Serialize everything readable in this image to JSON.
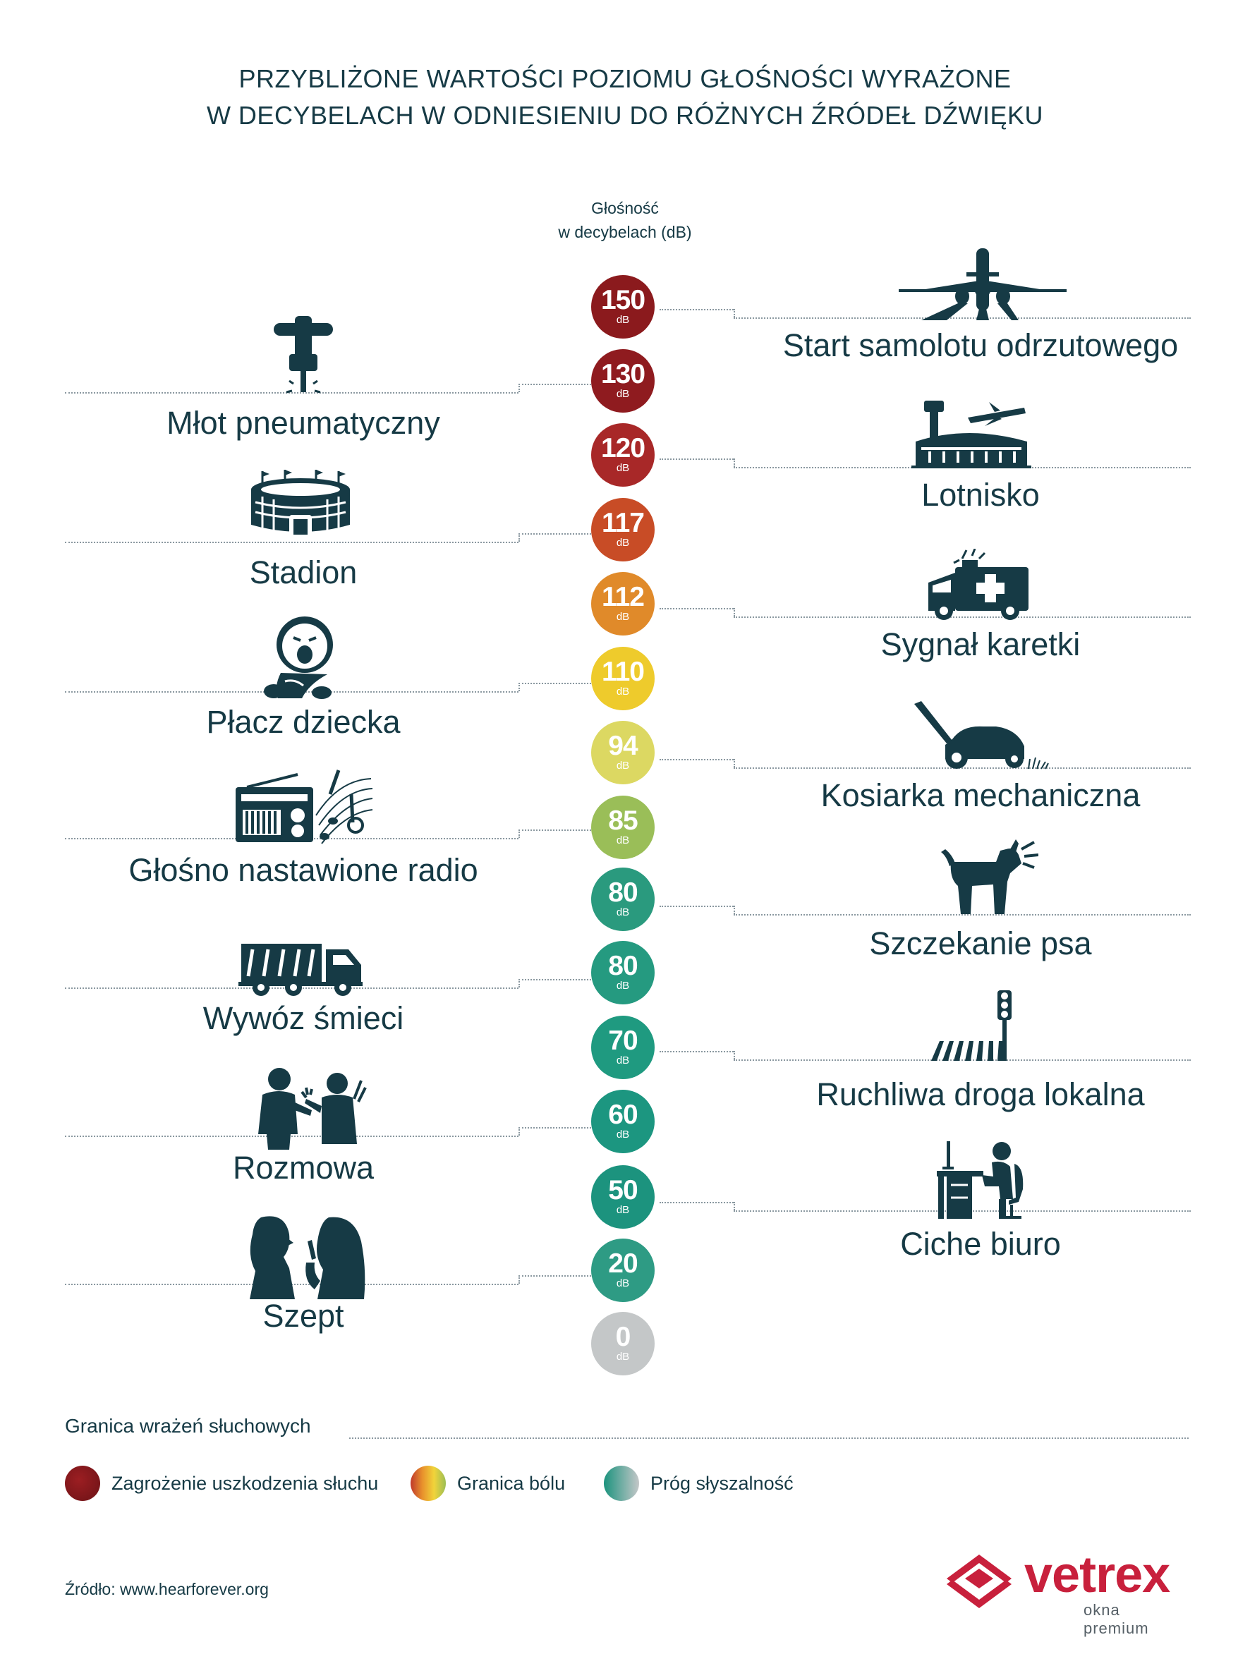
{
  "title": {
    "line1": "PRZYBLIŻONE WARTOŚCI POZIOMU GŁOŚNOŚCI WYRAŻONE",
    "line2": "W DECYBELACH W ODNIESIENIU DO RÓŻNYCH ŹRÓDEŁ DŹWIĘKU"
  },
  "axis": {
    "line1": "Głośność",
    "line2": "w decybelach (dB)"
  },
  "unit": "dB",
  "scale": [
    {
      "value": "150",
      "color": "#8b1a1d"
    },
    {
      "value": "130",
      "color": "#8f1b1f"
    },
    {
      "value": "120",
      "color": "#a82828"
    },
    {
      "value": "117",
      "color": "#c84c26"
    },
    {
      "value": "112",
      "color": "#e08a2a"
    },
    {
      "value": "110",
      "color": "#eecb2c"
    },
    {
      "value": "94",
      "color": "#dcd862"
    },
    {
      "value": "85",
      "color": "#9abe58"
    },
    {
      "value": "80",
      "color": "#2a9a7e"
    },
    {
      "value": "80",
      "color": "#259a80"
    },
    {
      "value": "70",
      "color": "#1f9a80"
    },
    {
      "value": "60",
      "color": "#1c9680"
    },
    {
      "value": "50",
      "color": "#1c937e"
    },
    {
      "value": "20",
      "color": "#2e9b84"
    },
    {
      "value": "0",
      "color": "#c4c7c8"
    }
  ],
  "left_labels": [
    "Młot pneumatyczny",
    "Stadion",
    "Płacz dziecka",
    "Głośno nastawione radio",
    "Wywóz śmieci",
    "Rozmowa",
    "Szept"
  ],
  "right_labels": [
    "Start samolotu odrzutowego",
    "Lotnisko",
    "Sygnał karetki",
    "Kosiarka mechaniczna",
    "Szczekanie psa",
    "Ruchliwa droga lokalna",
    "Ciche biuro"
  ],
  "legend": {
    "title": "Granica wrażeń słuchowych",
    "items": [
      {
        "label": "Zagrożenie uszkodzenia słuchu"
      },
      {
        "label": "Granica bólu"
      },
      {
        "label": "Próg słyszalność"
      }
    ]
  },
  "source": "Źródło:  www.hearforever.org",
  "brand": {
    "name": "vetrex",
    "tagline": "okna premium"
  },
  "colors": {
    "text": "#163a45",
    "brand": "#c8203c"
  }
}
